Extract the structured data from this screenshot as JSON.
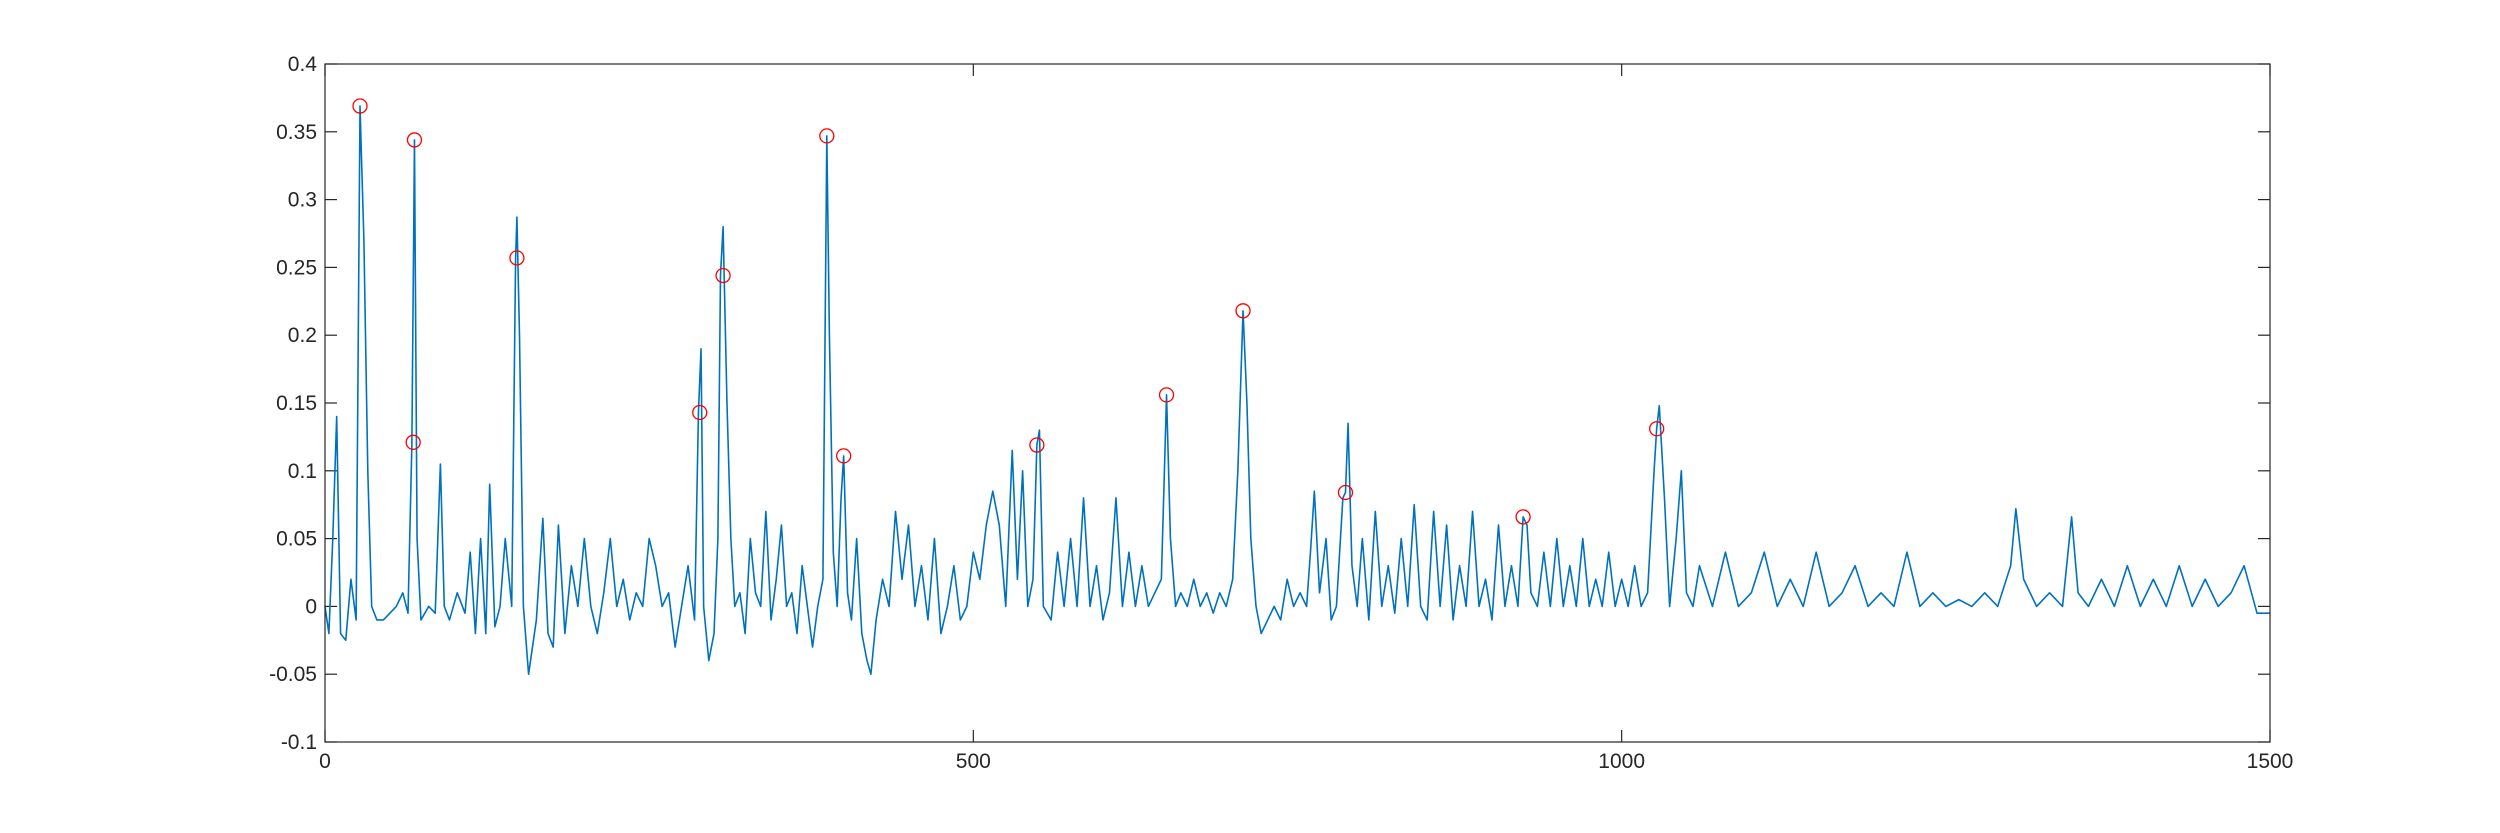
{
  "chart_data": {
    "type": "line",
    "xlim": [
      0,
      1500
    ],
    "xticks": [
      0,
      500,
      1000,
      1500
    ],
    "ylim": [
      -0.1,
      0.4
    ],
    "yticks": [
      -0.1,
      -0.05,
      0,
      0.05,
      0.1,
      0.15,
      0.2,
      0.25,
      0.3,
      0.35,
      0.4
    ],
    "grid": false,
    "series": [
      {
        "color": "#0072bd",
        "marker": "none",
        "x": [
          0,
          3,
          6,
          9,
          12,
          16,
          20,
          24,
          27,
          30,
          33,
          36,
          40,
          45,
          50,
          55,
          60,
          64,
          67,
          69,
          71,
          74,
          80,
          85,
          89,
          92,
          96,
          102,
          108,
          112,
          116,
          120,
          124,
          127,
          131,
          135,
          139,
          144,
          147,
          148,
          150,
          153,
          157,
          160,
          163,
          168,
          172,
          176,
          180,
          185,
          190,
          195,
          200,
          205,
          210,
          215,
          220,
          225,
          230,
          235,
          240,
          245,
          250,
          255,
          260,
          265,
          270,
          275,
          280,
          285,
          288,
          290,
          292,
          296,
          300,
          303,
          305,
          307,
          310,
          313,
          316,
          320,
          324,
          328,
          332,
          336,
          340,
          344,
          348,
          352,
          356,
          360,
          364,
          368,
          372,
          376,
          380,
          384,
          387,
          389,
          392,
          395,
          398,
          400,
          403,
          406,
          410,
          414,
          418,
          421,
          425,
          430,
          435,
          440,
          445,
          450,
          455,
          460,
          465,
          470,
          475,
          480,
          485,
          490,
          495,
          500,
          505,
          510,
          515,
          520,
          525,
          530,
          534,
          538,
          542,
          546,
          549,
          551,
          554,
          560,
          565,
          570,
          575,
          580,
          585,
          590,
          595,
          600,
          605,
          610,
          615,
          620,
          625,
          630,
          635,
          640,
          645,
          649,
          652,
          656,
          660,
          665,
          670,
          675,
          680,
          685,
          690,
          695,
          700,
          704,
          708,
          711,
          714,
          718,
          722,
          727,
          732,
          737,
          742,
          747,
          752,
          757,
          760,
          763,
          767,
          772,
          776,
          780,
          785,
          787,
          789,
          792,
          796,
          800,
          805,
          810,
          815,
          820,
          825,
          830,
          835,
          840,
          845,
          850,
          855,
          860,
          865,
          870,
          875,
          880,
          885,
          890,
          895,
          900,
          905,
          910,
          915,
          920,
          924,
          927,
          930,
          935,
          940,
          945,
          950,
          955,
          960,
          965,
          970,
          975,
          980,
          985,
          990,
          995,
          1000,
          1005,
          1010,
          1015,
          1020,
          1025,
          1027,
          1029,
          1033,
          1037,
          1042,
          1046,
          1050,
          1055,
          1060,
          1070,
          1080,
          1090,
          1100,
          1110,
          1120,
          1130,
          1140,
          1150,
          1160,
          1170,
          1180,
          1190,
          1200,
          1210,
          1220,
          1230,
          1240,
          1250,
          1260,
          1270,
          1280,
          1290,
          1300,
          1304,
          1310,
          1320,
          1330,
          1340,
          1347,
          1352,
          1360,
          1370,
          1380,
          1390,
          1400,
          1410,
          1420,
          1430,
          1440,
          1450,
          1460,
          1470,
          1480,
          1490,
          1500
        ],
        "values": [
          0,
          -0.02,
          0.05,
          0.14,
          -0.02,
          -0.025,
          0.02,
          -0.01,
          0.369,
          0.27,
          0.1,
          0,
          -0.01,
          -0.01,
          -0.005,
          0,
          0.01,
          -0.005,
          0.12,
          0.344,
          0.05,
          -0.01,
          0,
          -0.005,
          0.105,
          0,
          -0.01,
          0.01,
          -0.005,
          0.04,
          -0.02,
          0.05,
          -0.02,
          0.09,
          -0.015,
          0,
          0.05,
          0,
          0.257,
          0.287,
          0.2,
          0,
          -0.05,
          -0.03,
          -0.01,
          0.065,
          -0.02,
          -0.03,
          0.06,
          -0.02,
          0.03,
          0,
          0.05,
          0,
          -0.02,
          0.01,
          0.05,
          0,
          0.02,
          -0.01,
          0.01,
          0,
          0.05,
          0.03,
          0,
          0.01,
          -0.03,
          0,
          0.03,
          -0.01,
          0.143,
          0.19,
          0,
          -0.04,
          -0.02,
          0.05,
          0.244,
          0.28,
          0.15,
          0.05,
          0,
          0.01,
          -0.02,
          0.05,
          0.01,
          0,
          0.07,
          -0.01,
          0.02,
          0.06,
          0,
          0.01,
          -0.02,
          0.03,
          0,
          -0.03,
          0,
          0.02,
          0.347,
          0.2,
          0.04,
          0,
          0.08,
          0.111,
          0.01,
          -0.01,
          0.05,
          -0.02,
          -0.04,
          -0.05,
          -0.01,
          0.02,
          0,
          0.07,
          0.02,
          0.06,
          0,
          0.03,
          -0.01,
          0.05,
          -0.02,
          0,
          0.03,
          -0.01,
          0,
          0.04,
          0.02,
          0.06,
          0.085,
          0.06,
          0,
          0.115,
          0.02,
          0.1,
          0,
          0.02,
          0.119,
          0.13,
          0,
          -0.01,
          0.04,
          0,
          0.05,
          0,
          0.08,
          0,
          0.03,
          -0.01,
          0.01,
          0.08,
          0,
          0.04,
          0,
          0.03,
          0,
          0.01,
          0.02,
          0.156,
          0.05,
          0,
          0.01,
          0,
          0.02,
          0,
          0.01,
          -0.005,
          0.01,
          0,
          0.02,
          0.1,
          0.218,
          0.15,
          0.05,
          0,
          -0.02,
          -0.01,
          0,
          -0.01,
          0.02,
          0,
          0.01,
          0,
          0.04,
          0.085,
          0.01,
          0.05,
          -0.01,
          0,
          0.08,
          0.084,
          0.135,
          0.03,
          0,
          0.05,
          -0.01,
          0.07,
          0,
          0.03,
          -0.005,
          0.05,
          0,
          0.075,
          0,
          -0.01,
          0.07,
          0,
          0.06,
          -0.01,
          0.03,
          0,
          0.07,
          0,
          0.02,
          -0.01,
          0.06,
          0,
          0.03,
          0,
          0.066,
          0.06,
          0.01,
          0,
          0.04,
          0,
          0.05,
          0,
          0.03,
          0,
          0.05,
          0,
          0.02,
          0,
          0.04,
          0,
          0.02,
          0,
          0.03,
          0,
          0.01,
          0.1,
          0.131,
          0.148,
          0.08,
          0,
          0.05,
          0.1,
          0.01,
          0,
          0.03,
          0,
          0.04,
          0,
          0.01,
          0.04,
          0,
          0.02,
          0,
          0.04,
          0,
          0.01,
          0.03,
          0,
          0.01,
          0,
          0.04,
          0,
          0.01,
          0,
          0.005,
          0,
          0.01,
          0,
          0.03,
          0.072,
          0.02,
          0,
          0.01,
          0,
          0.066,
          0.01,
          0,
          0.02,
          0,
          0.03,
          0,
          0.02,
          0,
          0.03,
          0,
          0.02,
          0,
          0.01,
          0.03,
          -0.005,
          -0.005
        ]
      },
      {
        "color": "#ff0000",
        "marker": "circle",
        "x": [
          27,
          69,
          68,
          148,
          289,
          307,
          387,
          400,
          549,
          649,
          708,
          787,
          924,
          1027
        ],
        "values": [
          0.369,
          0.344,
          0.121,
          0.257,
          0.143,
          0.244,
          0.347,
          0.111,
          0.119,
          0.156,
          0.218,
          0.084,
          0.066,
          0.131
        ]
      }
    ]
  }
}
